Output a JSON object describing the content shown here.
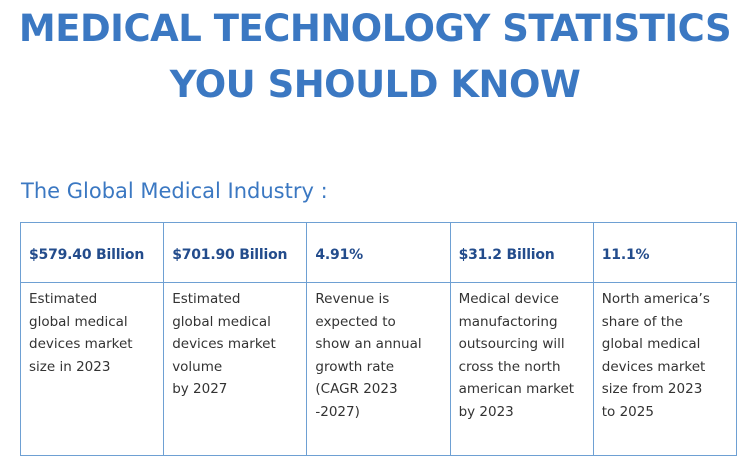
{
  "colors": {
    "accent": "#3b78c2",
    "header_text": "#234c8c",
    "body_text": "#333333",
    "border": "#6ea0d3"
  },
  "title": {
    "line1": "MEDICAL TECHNOLOGY STATISTICS",
    "line2": "YOU SHOULD KNOW"
  },
  "subtitle": "The Global Medical Industry :",
  "table": {
    "columns": [
      {
        "header": "$579.40 Billion",
        "description": "Estimated\nglobal medical\ndevices market\nsize in 2023"
      },
      {
        "header": "$701.90 Billion",
        "description": "Estimated\nglobal medical\ndevices market\nvolume\nby 2027"
      },
      {
        "header": "4.91%",
        "description": "Revenue is\nexpected to\nshow an annual\ngrowth rate\n(CAGR 2023\n-2027)"
      },
      {
        "header": "$31.2 Billion",
        "description": "Medical device\nmanufactoring\noutsourcing will\ncross the north\namerican market\nby 2023"
      },
      {
        "header": "11.1%",
        "description": "North america’s\nshare of the\nglobal medical\ndevices market\nsize from 2023\nto 2025"
      }
    ]
  }
}
